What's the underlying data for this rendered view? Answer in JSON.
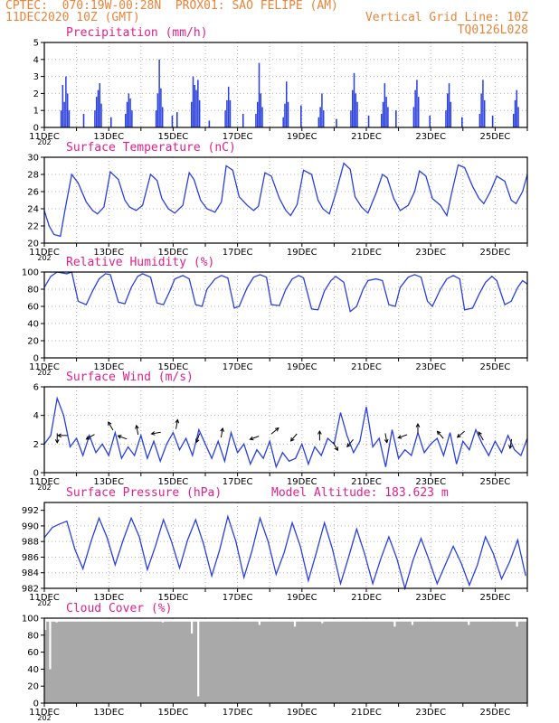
{
  "header": {
    "line1": "CPTEC:  070:19W-00:28N  PROX01: SAO FELIPE (AM)",
    "line2_left": "11DEC2020 10Z (GMT)",
    "line2_right": "Vertical Grid Line: 10Z",
    "line3_right": "TQ0126L028"
  },
  "x_axis": {
    "ticks": [
      "11DEC",
      "13DEC",
      "15DEC",
      "17DEC",
      "19DEC",
      "21DEC",
      "23DEC",
      "25DEC"
    ],
    "year_label": "202"
  },
  "colors": {
    "line": "#2a3fe0",
    "bar": "#2a3fe0",
    "cloud": "#a9a9a9",
    "title": "#e0208a",
    "header": "#e8843a",
    "grid": "#b0b0b0"
  },
  "chart_data": [
    {
      "type": "bar",
      "title": "Precipitation (mm/h)",
      "ylim": [
        0,
        5
      ],
      "yticks": [
        "0",
        "1",
        "2",
        "3",
        "4",
        "5"
      ],
      "x_unit": "days since 11DEC 10Z",
      "grid": true,
      "values_note": "hourly bars estimated",
      "bursts": [
        {
          "x": 0.5,
          "peaks": [
            1.0,
            2.5,
            1.5,
            3.0,
            2.0,
            1.0
          ]
        },
        {
          "x": 1.55,
          "peaks": [
            1.0,
            1.8,
            2.2,
            2.6,
            1.4
          ]
        },
        {
          "x": 2.5,
          "peaks": [
            0.8,
            1.5,
            2.0,
            1.7,
            1.0
          ]
        },
        {
          "x": 3.45,
          "peaks": [
            1.0,
            2.0,
            4.0,
            2.3,
            1.2
          ]
        },
        {
          "x": 4.55,
          "peaks": [
            1.5,
            3.0,
            2.5,
            2.2,
            2.8,
            1.6
          ]
        },
        {
          "x": 5.6,
          "peaks": [
            1.0,
            1.6,
            2.4,
            1.6
          ]
        },
        {
          "x": 6.55,
          "peaks": [
            0.8,
            1.5,
            3.8,
            2.0,
            1.2
          ]
        },
        {
          "x": 7.4,
          "peaks": [
            0.6,
            1.4,
            2.7,
            1.5
          ]
        },
        {
          "x": 8.5,
          "peaks": [
            0.6,
            1.2,
            2.0,
            1.0
          ]
        },
        {
          "x": 9.5,
          "peaks": [
            1.0,
            2.2,
            3.2,
            2.0,
            1.5
          ]
        },
        {
          "x": 10.45,
          "peaks": [
            0.8,
            1.5,
            2.6,
            1.8,
            1.2
          ]
        },
        {
          "x": 11.45,
          "peaks": [
            1.2,
            2.2,
            2.8,
            1.8
          ]
        },
        {
          "x": 12.45,
          "peaks": [
            1.0,
            2.0,
            2.6,
            1.5
          ]
        },
        {
          "x": 13.5,
          "peaks": [
            0.8,
            2.0,
            2.8,
            1.6
          ]
        },
        {
          "x": 14.55,
          "peaks": [
            0.8,
            1.6,
            2.2,
            1.2
          ]
        }
      ],
      "singles": [
        [
          1.2,
          0.8
        ],
        [
          2.05,
          0.6
        ],
        [
          3.95,
          0.7
        ],
        [
          4.1,
          0.9
        ],
        [
          5.1,
          0.4
        ],
        [
          6.15,
          0.8
        ],
        [
          7.95,
          1.3
        ],
        [
          9.05,
          0.5
        ],
        [
          10.05,
          0.7
        ],
        [
          10.9,
          1.0
        ],
        [
          11.95,
          0.7
        ],
        [
          12.95,
          0.6
        ],
        [
          13.9,
          0.7
        ]
      ]
    },
    {
      "type": "line",
      "title": "Surface Temperature (nC)",
      "ylim": [
        20,
        30
      ],
      "yticks": [
        "20",
        "22",
        "24",
        "26",
        "28",
        "30"
      ],
      "grid": true,
      "x": [
        0,
        0.15,
        0.3,
        0.5,
        0.65,
        0.85,
        1.05,
        1.3,
        1.5,
        1.65,
        1.85,
        2.05,
        2.3,
        2.5,
        2.65,
        2.85,
        3.05,
        3.3,
        3.5,
        3.65,
        3.85,
        4.05,
        4.3,
        4.5,
        4.65,
        4.85,
        5.05,
        5.3,
        5.5,
        5.65,
        5.85,
        6.05,
        6.3,
        6.5,
        6.65,
        6.85,
        7.05,
        7.3,
        7.5,
        7.65,
        7.85,
        8.05,
        8.3,
        8.5,
        8.65,
        8.85,
        9.05,
        9.3,
        9.5,
        9.65,
        9.85,
        10.05,
        10.3,
        10.5,
        10.65,
        10.85,
        11.05,
        11.3,
        11.5,
        11.65,
        11.85,
        12.05,
        12.3,
        12.5,
        12.65,
        12.85,
        13.05,
        13.3,
        13.5,
        13.65,
        13.85,
        14.05,
        14.3,
        14.5,
        14.65,
        14.85,
        15.0
      ],
      "values": [
        23.8,
        22.0,
        21.0,
        20.8,
        24.0,
        28.0,
        27.0,
        24.8,
        23.8,
        23.4,
        24.2,
        28.3,
        27.4,
        25.0,
        24.2,
        23.8,
        24.4,
        28.0,
        27.3,
        25.2,
        24.0,
        23.5,
        24.4,
        28.2,
        27.4,
        25.0,
        24.0,
        23.6,
        24.8,
        29.0,
        28.5,
        25.4,
        24.4,
        23.8,
        24.3,
        28.2,
        27.8,
        25.2,
        23.8,
        23.2,
        24.5,
        28.5,
        28.0,
        25.0,
        24.0,
        23.4,
        25.8,
        29.3,
        28.6,
        25.4,
        24.2,
        23.5,
        25.8,
        28.0,
        27.6,
        25.2,
        23.8,
        24.4,
        26.0,
        28.4,
        27.8,
        25.2,
        24.4,
        23.2,
        25.8,
        29.1,
        28.8,
        26.6,
        25.2,
        24.6,
        26.0,
        27.8,
        27.2,
        25.0,
        24.6,
        26.0,
        28.0
      ]
    },
    {
      "type": "line",
      "title": "Relative Humidity (%)",
      "ylim": [
        0,
        100
      ],
      "yticks": [
        "0",
        "20",
        "40",
        "60",
        "80",
        "100"
      ],
      "grid": true,
      "x": [
        0,
        0.2,
        0.4,
        0.7,
        0.85,
        1.05,
        1.3,
        1.5,
        1.7,
        1.9,
        2.05,
        2.3,
        2.5,
        2.7,
        2.9,
        3.05,
        3.3,
        3.5,
        3.7,
        3.9,
        4.05,
        4.3,
        4.5,
        4.7,
        4.9,
        5.05,
        5.3,
        5.5,
        5.7,
        5.9,
        6.05,
        6.3,
        6.5,
        6.7,
        6.9,
        7.05,
        7.3,
        7.5,
        7.7,
        7.9,
        8.05,
        8.3,
        8.5,
        8.7,
        8.9,
        9.05,
        9.3,
        9.5,
        9.7,
        9.9,
        10.05,
        10.3,
        10.5,
        10.7,
        10.9,
        11.05,
        11.3,
        11.5,
        11.7,
        11.9,
        12.05,
        12.3,
        12.5,
        12.7,
        12.9,
        13.05,
        13.3,
        13.5,
        13.7,
        13.9,
        14.05,
        14.3,
        14.5,
        14.7,
        14.85,
        15.0
      ],
      "values": [
        82,
        95,
        100,
        98,
        100,
        66,
        62,
        78,
        92,
        98,
        97,
        65,
        63,
        82,
        95,
        98,
        94,
        64,
        62,
        78,
        92,
        96,
        92,
        62,
        60,
        80,
        92,
        96,
        93,
        58,
        60,
        82,
        94,
        97,
        94,
        62,
        61,
        80,
        92,
        96,
        93,
        57,
        56,
        78,
        90,
        95,
        88,
        54,
        60,
        80,
        90,
        92,
        90,
        62,
        60,
        82,
        94,
        97,
        94,
        66,
        60,
        80,
        92,
        96,
        92,
        56,
        58,
        74,
        88,
        95,
        90,
        62,
        66,
        82,
        90,
        86
      ]
    },
    {
      "type": "line",
      "title": "Surface Wind (m/s)",
      "ylim": [
        0,
        6
      ],
      "yticks": [
        "0",
        "2",
        "4",
        "6"
      ],
      "grid": true,
      "x": [
        0,
        0.2,
        0.4,
        0.6,
        0.8,
        1.0,
        1.2,
        1.4,
        1.6,
        1.8,
        2.0,
        2.2,
        2.4,
        2.6,
        2.8,
        3.0,
        3.2,
        3.4,
        3.6,
        3.8,
        4.0,
        4.2,
        4.4,
        4.6,
        4.8,
        5.0,
        5.2,
        5.4,
        5.6,
        5.8,
        6.0,
        6.2,
        6.4,
        6.6,
        6.8,
        7.0,
        7.2,
        7.4,
        7.6,
        7.8,
        8.0,
        8.2,
        8.4,
        8.6,
        8.8,
        9.0,
        9.2,
        9.4,
        9.6,
        9.8,
        10.0,
        10.2,
        10.4,
        10.6,
        10.8,
        11.0,
        11.2,
        11.4,
        11.6,
        11.8,
        12.0,
        12.2,
        12.4,
        12.6,
        12.8,
        13.0,
        13.2,
        13.4,
        13.6,
        13.8,
        14.0,
        14.2,
        14.4,
        14.6,
        14.8,
        15.0
      ],
      "values": [
        2.0,
        2.6,
        5.2,
        4.0,
        1.8,
        2.4,
        1.2,
        2.6,
        1.4,
        2.0,
        1.2,
        2.8,
        1.0,
        1.8,
        1.2,
        2.6,
        1.0,
        2.2,
        0.8,
        2.0,
        2.8,
        1.6,
        2.4,
        1.2,
        3.0,
        2.0,
        1.0,
        2.2,
        0.8,
        2.8,
        1.4,
        2.0,
        0.6,
        1.6,
        1.0,
        2.2,
        0.4,
        1.4,
        0.8,
        1.0,
        2.0,
        0.6,
        1.8,
        1.2,
        2.4,
        2.0,
        4.2,
        2.6,
        1.4,
        2.2,
        4.6,
        1.8,
        2.4,
        0.4,
        3.0,
        1.0,
        1.6,
        1.2,
        2.8,
        1.4,
        2.0,
        2.4,
        1.2,
        2.8,
        0.6,
        2.2,
        1.6,
        3.0,
        2.0,
        1.2,
        2.2,
        1.4,
        2.6,
        1.6,
        1.2,
        2.4
      ],
      "arrows": [
        {
          "x": 0.4,
          "y": 2.6,
          "dir_deg": 270
        },
        {
          "x": 0.65,
          "y": 2.6,
          "dir_deg": 180
        },
        {
          "x": 1.5,
          "y": 2.6,
          "dir_deg": 210
        },
        {
          "x": 2.1,
          "y": 3.1,
          "dir_deg": 120
        },
        {
          "x": 2.5,
          "y": 2.4,
          "dir_deg": 160
        },
        {
          "x": 2.9,
          "y": 2.8,
          "dir_deg": 100
        },
        {
          "x": 3.55,
          "y": 2.8,
          "dir_deg": 190
        },
        {
          "x": 4.1,
          "y": 3.2,
          "dir_deg": 80
        },
        {
          "x": 4.8,
          "y": 2.6,
          "dir_deg": 250
        },
        {
          "x": 5.5,
          "y": 2.6,
          "dir_deg": 80
        },
        {
          "x": 6.6,
          "y": 2.5,
          "dir_deg": 200
        },
        {
          "x": 7.1,
          "y": 2.8,
          "dir_deg": 40
        },
        {
          "x": 7.8,
          "y": 2.6,
          "dir_deg": 230
        },
        {
          "x": 8.55,
          "y": 2.4,
          "dir_deg": 90
        },
        {
          "x": 9.0,
          "y": 2.0,
          "dir_deg": 300
        },
        {
          "x": 9.55,
          "y": 2.2,
          "dir_deg": 230
        },
        {
          "x": 10.6,
          "y": 2.6,
          "dir_deg": 280
        },
        {
          "x": 11.2,
          "y": 2.6,
          "dir_deg": 200
        },
        {
          "x": 11.6,
          "y": 2.9,
          "dir_deg": 90
        },
        {
          "x": 12.35,
          "y": 2.5,
          "dir_deg": 130
        },
        {
          "x": 13.0,
          "y": 2.8,
          "dir_deg": 220
        },
        {
          "x": 13.6,
          "y": 2.4,
          "dir_deg": 120
        },
        {
          "x": 14.5,
          "y": 2.2,
          "dir_deg": 260
        }
      ]
    },
    {
      "type": "line",
      "title": "Surface Pressure (hPa)",
      "subtitle": "Model Altitude: 183.623 m",
      "ylim": [
        982,
        993
      ],
      "yticks": [
        "982",
        "984",
        "986",
        "988",
        "990",
        "992"
      ],
      "grid": true,
      "x": [
        0,
        0.25,
        0.45,
        0.7,
        0.95,
        1.2,
        1.45,
        1.7,
        1.95,
        2.2,
        2.45,
        2.7,
        2.95,
        3.2,
        3.45,
        3.7,
        3.95,
        4.2,
        4.45,
        4.7,
        4.95,
        5.2,
        5.45,
        5.7,
        5.95,
        6.2,
        6.45,
        6.7,
        6.95,
        7.2,
        7.45,
        7.7,
        7.95,
        8.2,
        8.45,
        8.7,
        8.95,
        9.2,
        9.45,
        9.7,
        9.95,
        10.2,
        10.45,
        10.7,
        10.95,
        11.2,
        11.45,
        11.7,
        11.95,
        12.2,
        12.45,
        12.7,
        12.95,
        13.2,
        13.45,
        13.7,
        13.95,
        14.2,
        14.45,
        14.7,
        14.95
      ],
      "values": [
        988.5,
        989.8,
        990.2,
        990.6,
        987.0,
        984.5,
        988.0,
        991.0,
        988.5,
        985.0,
        988.2,
        991.0,
        988.6,
        984.4,
        987.4,
        990.8,
        988.0,
        984.6,
        988.2,
        990.8,
        987.6,
        983.6,
        987.0,
        991.2,
        988.0,
        983.4,
        986.8,
        991.0,
        988.0,
        983.8,
        986.6,
        990.4,
        987.4,
        983.0,
        986.6,
        990.4,
        987.0,
        982.6,
        986.0,
        989.6,
        986.4,
        982.6,
        985.8,
        988.6,
        985.8,
        982.0,
        985.6,
        988.4,
        985.6,
        982.6,
        985.0,
        987.4,
        985.2,
        982.4,
        985.0,
        988.6,
        986.4,
        983.2,
        985.4,
        988.2,
        983.6
      ]
    },
    {
      "type": "bar",
      "title": "Cloud Cover (%)",
      "ylim": [
        0,
        100
      ],
      "yticks": [
        "0",
        "20",
        "40",
        "60",
        "80",
        "100"
      ],
      "grid": true,
      "baseline_pct": 96,
      "dips": [
        [
          0.0,
          86
        ],
        [
          0.15,
          40
        ],
        [
          0.35,
          95
        ],
        [
          3.65,
          95
        ],
        [
          4.55,
          82
        ],
        [
          4.75,
          8
        ],
        [
          6.65,
          92
        ],
        [
          7.75,
          90
        ],
        [
          8.6,
          94
        ],
        [
          10.85,
          90
        ],
        [
          11.4,
          92
        ],
        [
          13.15,
          92
        ],
        [
          14.65,
          90
        ]
      ]
    }
  ]
}
